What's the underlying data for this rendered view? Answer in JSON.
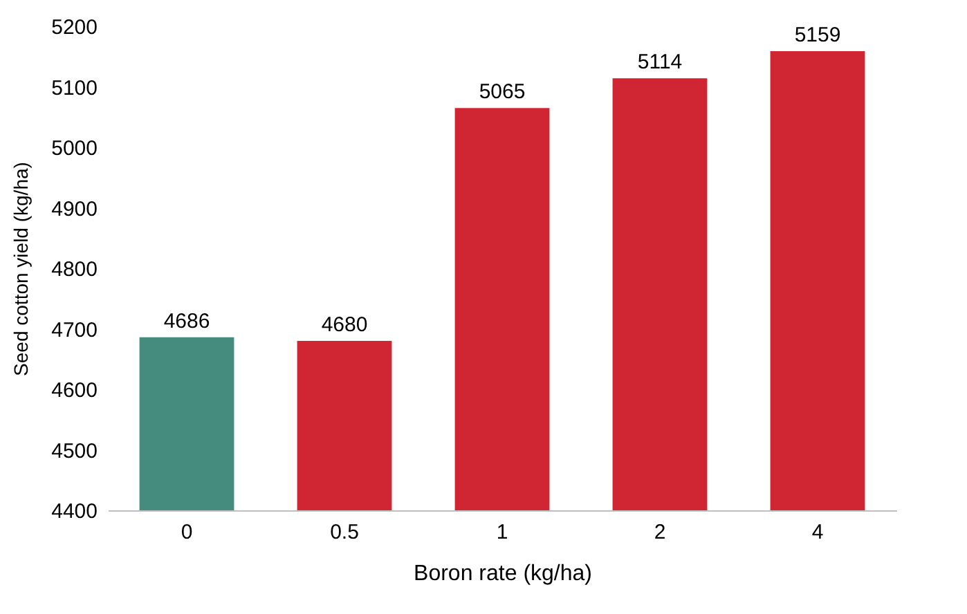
{
  "chart_data": {
    "type": "bar",
    "xlabel": "Boron rate (kg/ha)",
    "ylabel": "Seed cotton yield (kg/ha)",
    "categories": [
      "0",
      "0.5",
      "1",
      "2",
      "4"
    ],
    "values": [
      4686,
      4680,
      5065,
      5114,
      5159
    ],
    "colors": [
      "#458c7f",
      "#d02533",
      "#d02533",
      "#d02533",
      "#d02533"
    ],
    "ylim": [
      4400,
      5200
    ],
    "yticks": [
      4400,
      4500,
      4600,
      4700,
      4800,
      4900,
      5000,
      5100,
      5200
    ],
    "data_labels": true
  }
}
